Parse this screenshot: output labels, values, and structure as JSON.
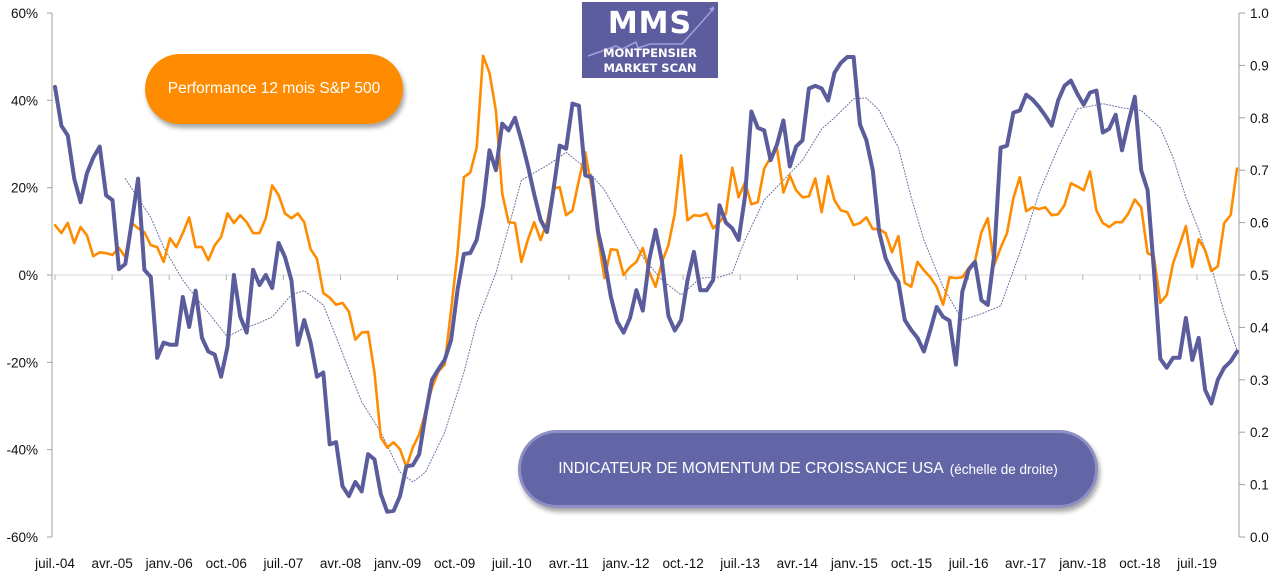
{
  "logo": {
    "text_main": "MMS",
    "text_line1": "MONTPENSIER",
    "text_line2": "MARKET SCAN",
    "color": "#5c5c9e"
  },
  "chart_data": {
    "type": "line",
    "title": "",
    "left_axis": {
      "ylim": [
        -0.6,
        0.6
      ],
      "ticks": [
        "60%",
        "40%",
        "20%",
        "0%",
        "-20%",
        "-40%",
        "-60%"
      ]
    },
    "right_axis": {
      "ylim": [
        0.0,
        1.0
      ],
      "ticks": [
        "1.0",
        "0.9",
        "0.8",
        "0.7",
        "0.6",
        "0.5",
        "0.4",
        "0.3",
        "0.2",
        "0.1",
        "0.0"
      ]
    },
    "x_tick_labels": [
      "juil.-04",
      "avr.-05",
      "janv.-06",
      "oct.-06",
      "juil.-07",
      "avr.-08",
      "janv.-09",
      "oct.-09",
      "juil.-10",
      "avr.-11",
      "janv.-12",
      "oct.-12",
      "juil.-13",
      "avr.-14",
      "janv.-15",
      "oct.-15",
      "juil.-16",
      "avr.-17",
      "janv.-18",
      "oct.-18",
      "juil.-19"
    ],
    "grid": false,
    "x": [
      "2004-07",
      "2004-08",
      "2004-09",
      "2004-10",
      "2004-11",
      "2004-12",
      "2005-01",
      "2005-02",
      "2005-03",
      "2005-04",
      "2005-05",
      "2005-06",
      "2005-07",
      "2005-08",
      "2005-09",
      "2005-10",
      "2005-11",
      "2005-12",
      "2006-01",
      "2006-02",
      "2006-03",
      "2006-04",
      "2006-05",
      "2006-06",
      "2006-07",
      "2006-08",
      "2006-09",
      "2006-10",
      "2006-11",
      "2006-12",
      "2007-01",
      "2007-02",
      "2007-03",
      "2007-04",
      "2007-05",
      "2007-06",
      "2007-07",
      "2007-08",
      "2007-09",
      "2007-10",
      "2007-11",
      "2007-12",
      "2008-01",
      "2008-02",
      "2008-03",
      "2008-04",
      "2008-05",
      "2008-06",
      "2008-07",
      "2008-08",
      "2008-09",
      "2008-10",
      "2008-11",
      "2008-12",
      "2009-01",
      "2009-02",
      "2009-03",
      "2009-04",
      "2009-05",
      "2009-06",
      "2009-07",
      "2009-08",
      "2009-09",
      "2009-10",
      "2009-11",
      "2009-12",
      "2010-01",
      "2010-02",
      "2010-03",
      "2010-04",
      "2010-05",
      "2010-06",
      "2010-07",
      "2010-08",
      "2010-09",
      "2010-10",
      "2010-11",
      "2010-12",
      "2011-01",
      "2011-02",
      "2011-03",
      "2011-04",
      "2011-05",
      "2011-06",
      "2011-07",
      "2011-08",
      "2011-09",
      "2011-10",
      "2011-11",
      "2011-12",
      "2012-01",
      "2012-02",
      "2012-03",
      "2012-04",
      "2012-05",
      "2012-06",
      "2012-07",
      "2012-08",
      "2012-09",
      "2012-10",
      "2012-11",
      "2012-12",
      "2013-01",
      "2013-02",
      "2013-03",
      "2013-04",
      "2013-05",
      "2013-06",
      "2013-07",
      "2013-08",
      "2013-09",
      "2013-10",
      "2013-11",
      "2013-12",
      "2014-01",
      "2014-02",
      "2014-03",
      "2014-04",
      "2014-05",
      "2014-06",
      "2014-07",
      "2014-08",
      "2014-09",
      "2014-10",
      "2014-11",
      "2014-12",
      "2015-01",
      "2015-02",
      "2015-03",
      "2015-04",
      "2015-05",
      "2015-06",
      "2015-07",
      "2015-08",
      "2015-09",
      "2015-10",
      "2015-11",
      "2015-12",
      "2016-01",
      "2016-02",
      "2016-03",
      "2016-04",
      "2016-05",
      "2016-06",
      "2016-07",
      "2016-08",
      "2016-09",
      "2016-10",
      "2016-11",
      "2016-12",
      "2017-01",
      "2017-02",
      "2017-03",
      "2017-04",
      "2017-05",
      "2017-06",
      "2017-07",
      "2017-08",
      "2017-09",
      "2017-10",
      "2017-11",
      "2017-12",
      "2018-01",
      "2018-02",
      "2018-03",
      "2018-04",
      "2018-05",
      "2018-06",
      "2018-07",
      "2018-08",
      "2018-09",
      "2018-10",
      "2018-11",
      "2018-12",
      "2019-01",
      "2019-02",
      "2019-03",
      "2019-04",
      "2019-05",
      "2019-06",
      "2019-07",
      "2019-08",
      "2019-09",
      "2019-10",
      "2019-11",
      "2019-12"
    ],
    "series": [
      {
        "name": "Performance 12 mois S&P 500",
        "axis": "left",
        "unit": "%",
        "color": "#ff8c00",
        "values": [
          11.4,
          9.6,
          11.9,
          7.3,
          11,
          9.1,
          4.3,
          5.2,
          5,
          4.6,
          6.2,
          4.1,
          11.9,
          10.7,
          9.8,
          6.8,
          6.4,
          3,
          8.4,
          6.4,
          9.6,
          13.2,
          6.4,
          6.4,
          3.4,
          6.8,
          8.7,
          14.1,
          11.9,
          13.7,
          12.1,
          9.6,
          9.6,
          13,
          20.5,
          18.3,
          14.1,
          13,
          14.1,
          12.1,
          5.9,
          3.7,
          -4.1,
          -5.2,
          -6.8,
          -6.4,
          -8.4,
          -14.8,
          -13.2,
          -13,
          -22.4,
          -37.2,
          -39.5,
          -38.3,
          -39.9,
          -44,
          -39.5,
          -36.5,
          -31.3,
          -25.8,
          -22.1,
          -20.5,
          -8,
          5,
          22.4,
          23.5,
          29.2,
          50.2,
          46.3,
          37.6,
          18.7,
          12.1,
          11.9,
          3,
          8,
          12.1,
          8,
          12.1,
          19.8,
          20.1,
          13.7,
          14.8,
          21.7,
          28.1,
          19.8,
          8.4,
          -0.7,
          5.9,
          5.7,
          0,
          1.8,
          3,
          6.2,
          0.7,
          -2.7,
          3,
          6.8,
          14.1,
          27.4,
          12.5,
          13.7,
          13.5,
          14.1,
          10.7,
          12.1,
          14.1,
          24.6,
          17.8,
          21.2,
          16.2,
          16.7,
          24.4,
          26.9,
          29,
          18.9,
          22.8,
          19.4,
          17.8,
          18,
          22.1,
          14.4,
          22.6,
          17.1,
          14.8,
          14.4,
          11.4,
          11.9,
          13.2,
          10.5,
          10.5,
          9.6,
          5.2,
          8.9,
          -1.8,
          -2.7,
          3,
          1.1,
          -0.5,
          -2.7,
          -6.8,
          -0.5,
          -0.7,
          -0.5,
          1.6,
          3.2,
          9.8,
          13,
          2.3,
          6.2,
          9.6,
          17.6,
          22.4,
          14.6,
          15.5,
          15.1,
          15.5,
          13.7,
          13.9,
          16,
          21,
          20.3,
          19.4,
          23.7,
          14.8,
          11.9,
          11,
          12.1,
          12.1,
          14.1,
          17.3,
          15.5,
          5,
          4.3,
          -6.4,
          -4.6,
          2.7,
          6.8,
          11.2,
          1.8,
          8.2,
          5.7,
          0.9,
          2,
          11.9,
          13.7,
          24.4
        ]
      },
      {
        "name": "INDICATEUR DE MOMENTUM DE CROISSANCE USA",
        "axis": "right",
        "color": "#5a5c9c",
        "values": [
          0.859,
          0.785,
          0.766,
          0.684,
          0.639,
          0.694,
          0.724,
          0.745,
          0.652,
          0.643,
          0.511,
          0.521,
          0.6,
          0.684,
          0.51,
          0.496,
          0.342,
          0.371,
          0.367,
          0.367,
          0.458,
          0.401,
          0.47,
          0.38,
          0.354,
          0.348,
          0.306,
          0.363,
          0.5,
          0.42,
          0.39,
          0.51,
          0.481,
          0.5,
          0.475,
          0.561,
          0.534,
          0.49,
          0.367,
          0.414,
          0.371,
          0.306,
          0.314,
          0.177,
          0.181,
          0.097,
          0.078,
          0.105,
          0.087,
          0.158,
          0.148,
          0.082,
          0.048,
          0.05,
          0.078,
          0.135,
          0.137,
          0.158,
          0.234,
          0.3,
          0.32,
          0.338,
          0.376,
          0.471,
          0.54,
          0.542,
          0.567,
          0.633,
          0.738,
          0.7,
          0.789,
          0.776,
          0.8,
          0.757,
          0.709,
          0.654,
          0.605,
          0.582,
          0.662,
          0.747,
          0.741,
          0.827,
          0.823,
          0.69,
          0.686,
          0.582,
          0.529,
          0.458,
          0.411,
          0.39,
          0.418,
          0.471,
          0.432,
          0.529,
          0.586,
          0.525,
          0.422,
          0.394,
          0.414,
          0.49,
          0.544,
          0.471,
          0.471,
          0.49,
          0.633,
          0.6,
          0.589,
          0.567,
          0.65,
          0.812,
          0.781,
          0.776,
          0.719,
          0.749,
          0.795,
          0.707,
          0.745,
          0.757,
          0.856,
          0.861,
          0.856,
          0.833,
          0.886,
          0.905,
          0.916,
          0.916,
          0.787,
          0.757,
          0.7,
          0.582,
          0.532,
          0.506,
          0.487,
          0.414,
          0.395,
          0.38,
          0.354,
          0.395,
          0.439,
          0.42,
          0.413,
          0.329,
          0.468,
          0.51,
          0.525,
          0.452,
          0.443,
          0.538,
          0.743,
          0.747,
          0.81,
          0.814,
          0.844,
          0.835,
          0.821,
          0.804,
          0.785,
          0.833,
          0.861,
          0.871,
          0.846,
          0.825,
          0.848,
          0.852,
          0.772,
          0.779,
          0.806,
          0.738,
          0.791,
          0.84,
          0.7,
          0.662,
          0.51,
          0.34,
          0.323,
          0.342,
          0.342,
          0.418,
          0.338,
          0.38,
          0.281,
          0.255,
          0.3,
          0.323,
          0.335,
          0.354
        ]
      },
      {
        "axis": "right",
        "style": "dotted",
        "color": "#6a6c9c",
        "points": [
          [
            "2005-06",
            0.684
          ],
          [
            "2005-10",
            0.61
          ],
          [
            "2005-12",
            0.553
          ],
          [
            "2006-03",
            0.49
          ],
          [
            "2006-05",
            0.458
          ],
          [
            "2006-07",
            0.428
          ],
          [
            "2006-10",
            0.382
          ],
          [
            "2006-12",
            0.395
          ],
          [
            "2007-03",
            0.409
          ],
          [
            "2007-05",
            0.42
          ],
          [
            "2007-08",
            0.462
          ],
          [
            "2007-10",
            0.47
          ],
          [
            "2008-01",
            0.443
          ],
          [
            "2008-03",
            0.382
          ],
          [
            "2008-05",
            0.319
          ],
          [
            "2008-07",
            0.258
          ],
          [
            "2008-10",
            0.2
          ],
          [
            "2009-01",
            0.124
          ],
          [
            "2009-03",
            0.105
          ],
          [
            "2009-05",
            0.124
          ],
          [
            "2009-08",
            0.2
          ],
          [
            "2009-11",
            0.314
          ],
          [
            "2010-01",
            0.409
          ],
          [
            "2010-04",
            0.504
          ],
          [
            "2010-06",
            0.591
          ],
          [
            "2010-08",
            0.681
          ],
          [
            "2010-12",
            0.709
          ],
          [
            "2011-03",
            0.734
          ],
          [
            "2011-06",
            0.705
          ],
          [
            "2011-09",
            0.662
          ],
          [
            "2011-12",
            0.599
          ],
          [
            "2012-03",
            0.534
          ],
          [
            "2012-06",
            0.49
          ],
          [
            "2012-09",
            0.462
          ],
          [
            "2012-12",
            0.494
          ],
          [
            "2013-03",
            0.496
          ],
          [
            "2013-05",
            0.504
          ],
          [
            "2013-07",
            0.567
          ],
          [
            "2013-10",
            0.643
          ],
          [
            "2014-01",
            0.681
          ],
          [
            "2014-04",
            0.719
          ],
          [
            "2014-07",
            0.779
          ],
          [
            "2014-09",
            0.8
          ],
          [
            "2014-12",
            0.836
          ],
          [
            "2015-02",
            0.838
          ],
          [
            "2015-04",
            0.814
          ],
          [
            "2015-07",
            0.743
          ],
          [
            "2015-09",
            0.648
          ],
          [
            "2015-11",
            0.567
          ],
          [
            "2016-02",
            0.477
          ],
          [
            "2016-05",
            0.414
          ],
          [
            "2016-08",
            0.426
          ],
          [
            "2016-11",
            0.441
          ],
          [
            "2017-02",
            0.542
          ],
          [
            "2017-05",
            0.656
          ],
          [
            "2017-08",
            0.743
          ],
          [
            "2017-11",
            0.817
          ],
          [
            "2018-03",
            0.827
          ],
          [
            "2018-06",
            0.819
          ],
          [
            "2018-09",
            0.814
          ],
          [
            "2018-12",
            0.781
          ],
          [
            "2019-02",
            0.724
          ],
          [
            "2019-04",
            0.648
          ],
          [
            "2019-06",
            0.586
          ],
          [
            "2019-08",
            0.515
          ],
          [
            "2019-10",
            0.428
          ],
          [
            "2019-12",
            0.357
          ]
        ]
      }
    ]
  },
  "annotations": {
    "sp500_label": "Performance 12 mois S&P 500",
    "momentum_label": "INDICATEUR DE MOMENTUM DE CROISSANCE USA",
    "momentum_note": "(échelle de droite)"
  }
}
